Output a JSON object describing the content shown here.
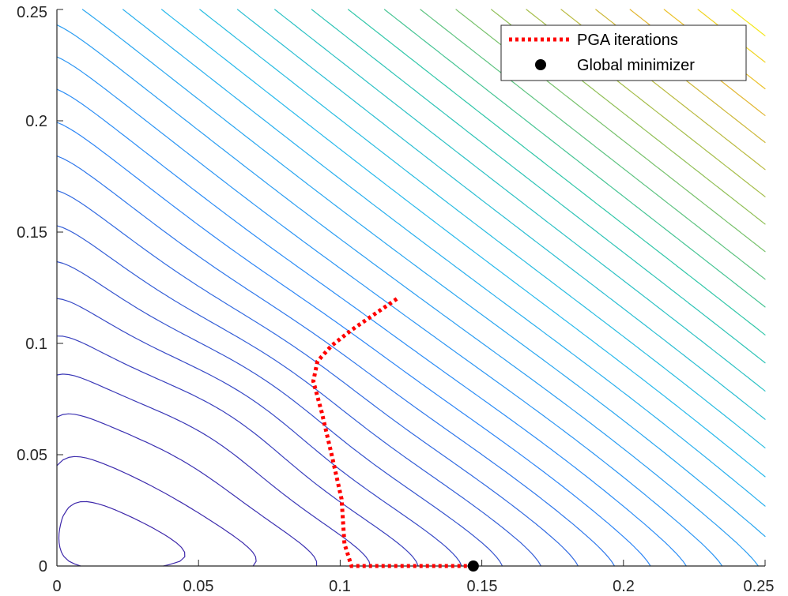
{
  "chart_data": {
    "type": "contour",
    "xlim": [
      0,
      0.25
    ],
    "ylim": [
      0,
      0.25
    ],
    "x_ticks": [
      "0",
      "0.05",
      "0.1",
      "0.15",
      "0.2",
      "0.25"
    ],
    "y_ticks": [
      "0",
      "0.05",
      "0.1",
      "0.15",
      "0.2",
      "0.25"
    ],
    "colormap": [
      "#3e26a8",
      "#2e87f7",
      "#29bbec",
      "#31c7a8",
      "#9bbf50",
      "#e8b52e",
      "#f9fb15"
    ],
    "grid": false,
    "legend": {
      "position": "top-right",
      "entries": [
        {
          "label": "PGA iterations",
          "style": "dotted-line",
          "color": "#ff0000"
        },
        {
          "label": "Global minimizer",
          "style": "marker",
          "color": "#000000"
        }
      ]
    },
    "series": [
      {
        "name": "PGA iterations",
        "kind": "path",
        "x": [
          0.12,
          0.112,
          0.104,
          0.097,
          0.092,
          0.0905,
          0.0935,
          0.097,
          0.1005,
          0.1015,
          0.104,
          0.115,
          0.13,
          0.14,
          0.147
        ],
        "y": [
          0.12,
          0.113,
          0.106,
          0.099,
          0.092,
          0.083,
          0.069,
          0.05,
          0.03,
          0.01,
          0.0,
          0.0,
          0.0,
          0.0,
          0.0
        ]
      },
      {
        "name": "Global minimizer",
        "kind": "point",
        "x": [
          0.147
        ],
        "y": [
          0.0
        ]
      }
    ]
  }
}
